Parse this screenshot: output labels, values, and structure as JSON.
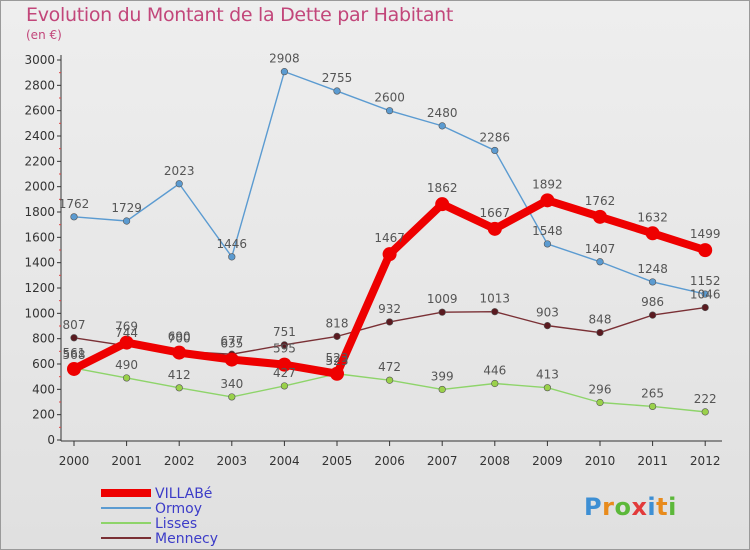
{
  "title": "Evolution du Montant de la Dette par Habitant",
  "unit_label": "(en €)",
  "logo": {
    "text": "Proxiti",
    "colors": [
      "#3d8fd4",
      "#e88b1c",
      "#5cb83a",
      "#e23a3a",
      "#3d8fd4",
      "#e88b1c",
      "#5cb83a"
    ]
  },
  "chart_data": {
    "type": "line",
    "title": "Evolution du Montant de la Dette par Habitant",
    "ylabel": "(en €)",
    "xlabel": "",
    "x": [
      "2000",
      "2001",
      "2002",
      "2003",
      "2004",
      "2005",
      "2006",
      "2007",
      "2008",
      "2009",
      "2010",
      "2011",
      "2012"
    ],
    "ylim": [
      0,
      3000
    ],
    "yticks": [
      "0",
      "200",
      "400",
      "600",
      "800",
      "1000",
      "1200",
      "1400",
      "1600",
      "1800",
      "2000",
      "2200",
      "2400",
      "2600",
      "2800",
      "3000"
    ],
    "grid": false,
    "legend_position": "bottom-left",
    "series": [
      {
        "name": "Ormoy",
        "color": "#5b9bd1",
        "marker_fill": "#5b9bd1",
        "weight": "thin",
        "values": [
          1762,
          1729,
          2023,
          1446,
          2908,
          2755,
          2600,
          2480,
          2286,
          1548,
          1407,
          1248,
          1152
        ]
      },
      {
        "name": "Mennecy",
        "color": "#7a3035",
        "marker_fill": "#5a1a20",
        "weight": "thin",
        "values": [
          807,
          744,
          700,
          677,
          751,
          818,
          932,
          1009,
          1013,
          903,
          848,
          986,
          1046
        ]
      },
      {
        "name": "Lisses",
        "color": "#8ed46a",
        "marker_fill": "#9ad14a",
        "weight": "thin",
        "values": [
          568,
          490,
          412,
          340,
          427,
          523,
          472,
          399,
          446,
          413,
          296,
          265,
          222
        ]
      },
      {
        "name": "VILLABé",
        "color": "#ee0000",
        "marker_fill": "#ee0000",
        "weight": "thick",
        "values": [
          561,
          769,
          690,
          635,
          595,
          523,
          1467,
          1862,
          1667,
          1892,
          1762,
          1632,
          1499
        ]
      }
    ],
    "legend": [
      "VILLABé",
      "Ormoy",
      "Lisses",
      "Mennecy"
    ]
  }
}
